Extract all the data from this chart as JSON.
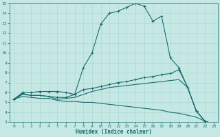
{
  "xlabel": "Humidex (Indice chaleur)",
  "bg_color": "#c5e8e5",
  "line_color": "#1a6b6b",
  "grid_color": "#a8d5d0",
  "xlim": [
    -0.5,
    23.5
  ],
  "ylim": [
    3,
    15
  ],
  "xticks": [
    0,
    1,
    2,
    3,
    4,
    5,
    6,
    7,
    8,
    9,
    10,
    11,
    12,
    13,
    14,
    15,
    16,
    17,
    18,
    19,
    20,
    21,
    22,
    23
  ],
  "yticks": [
    3,
    4,
    5,
    6,
    7,
    8,
    9,
    10,
    11,
    12,
    13,
    14,
    15
  ],
  "line1_x": [
    0,
    1,
    2,
    3,
    4,
    5,
    6,
    7,
    8,
    9,
    10,
    11,
    12,
    13,
    14,
    15,
    16,
    17,
    18,
    19,
    20,
    21,
    22,
    23
  ],
  "line1_y": [
    5.3,
    6.0,
    6.0,
    6.1,
    6.1,
    6.1,
    6.0,
    5.8,
    8.5,
    10.0,
    12.9,
    14.0,
    14.2,
    14.6,
    15.0,
    14.7,
    13.2,
    13.7,
    9.5,
    8.5,
    6.5,
    4.1,
    3.1,
    2.8
  ],
  "line2_x": [
    0,
    1,
    2,
    3,
    4,
    5,
    6,
    7,
    8,
    9,
    10,
    11,
    12,
    13,
    14,
    15,
    16,
    17,
    18,
    19,
    20,
    21,
    22,
    23
  ],
  "line2_y": [
    5.3,
    5.9,
    5.7,
    5.7,
    5.6,
    5.5,
    5.5,
    5.8,
    6.3,
    6.4,
    6.6,
    6.8,
    7.0,
    7.1,
    7.3,
    7.5,
    7.6,
    7.8,
    7.9,
    8.3,
    6.5,
    4.1,
    3.1,
    2.8
  ],
  "line3_x": [
    0,
    1,
    2,
    3,
    4,
    5,
    6,
    7,
    8,
    9,
    10,
    11,
    12,
    13,
    14,
    15,
    16,
    17,
    18,
    19,
    20,
    21,
    22,
    23
  ],
  "line3_y": [
    5.3,
    5.8,
    5.7,
    5.7,
    5.6,
    5.3,
    5.4,
    5.5,
    5.8,
    6.1,
    6.3,
    6.5,
    6.6,
    6.7,
    6.8,
    6.9,
    7.0,
    7.1,
    7.2,
    7.3,
    6.5,
    4.1,
    3.1,
    2.8
  ],
  "line4_x": [
    0,
    1,
    2,
    3,
    4,
    5,
    6,
    7,
    8,
    9,
    10,
    11,
    12,
    13,
    14,
    15,
    16,
    17,
    18,
    19,
    20,
    21,
    22,
    23
  ],
  "line4_y": [
    5.3,
    5.6,
    5.5,
    5.4,
    5.4,
    5.2,
    5.1,
    5.1,
    5.0,
    5.0,
    4.9,
    4.8,
    4.7,
    4.6,
    4.5,
    4.4,
    4.3,
    4.2,
    4.0,
    3.9,
    3.7,
    3.5,
    3.1,
    2.8
  ]
}
